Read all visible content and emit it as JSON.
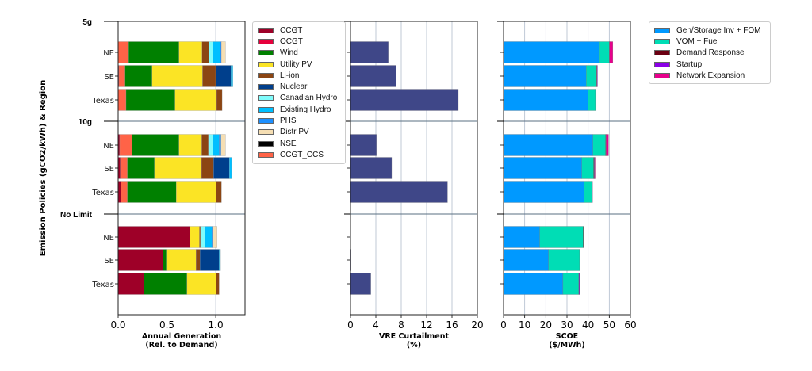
{
  "chart_data": [
    {
      "type": "bar",
      "orientation": "horizontal",
      "stacked": true,
      "xlabel": "Annual Generation\n(Rel. to Demand)",
      "ylabel": "Emission Policies (gCO2/kWh) & Region",
      "xlim": [
        0,
        1.3
      ],
      "xticks": [
        "0.0",
        "0.5",
        "1.0"
      ],
      "grid": "x",
      "legend_position": "right",
      "groups": [
        "5g",
        "10g",
        "No Limit"
      ],
      "regions": [
        "NE",
        "SE",
        "Texas"
      ],
      "legend": [
        "CCGT",
        "OCGT",
        "Wind",
        "Utility PV",
        "Li-ion",
        "Nuclear",
        "Canadian Hydro",
        "Existing Hydro",
        "PHS",
        "Distr PV",
        "NSE",
        "CCGT_CCS"
      ],
      "colors": {
        "CCGT": "#9e0028",
        "OCGT": "#e6003c",
        "Wind": "#008000",
        "Utility PV": "#fbe425",
        "Li-ion": "#8b4513",
        "Nuclear": "#003f8c",
        "Canadian Hydro": "#7ffcfc",
        "Existing Hydro": "#00bfff",
        "PHS": "#1e90ff",
        "Distr PV": "#f5deb3",
        "NSE": "#000000",
        "CCGT_CCS": "#ff6347"
      },
      "rows": [
        {
          "group": "5g",
          "region": "NE",
          "segments": {
            "CCGT_CCS": 0.108,
            "Wind": 0.515,
            "Utility PV": 0.237,
            "Li-ion": 0.07,
            "Canadian Hydro": 0.043,
            "Existing Hydro": 0.073,
            "PHS": 0.011,
            "Distr PV": 0.043
          }
        },
        {
          "group": "5g",
          "region": "SE",
          "segments": {
            "CCGT": 0.008,
            "CCGT_CCS": 0.062,
            "Wind": 0.278,
            "Utility PV": 0.517,
            "Li-ion": 0.135,
            "Nuclear": 0.156,
            "Existing Hydro": 0.019
          }
        },
        {
          "group": "5g",
          "region": "Texas",
          "segments": {
            "CCGT_CCS": 0.081,
            "Wind": 0.501,
            "Utility PV": 0.426,
            "Li-ion": 0.057
          }
        },
        {
          "group": "10g",
          "region": "NE",
          "segments": {
            "CCGT": 0.016,
            "CCGT_CCS": 0.127,
            "Wind": 0.48,
            "Utility PV": 0.234,
            "Li-ion": 0.068,
            "Canadian Hydro": 0.045,
            "Existing Hydro": 0.065,
            "PHS": 0.019,
            "Distr PV": 0.046
          }
        },
        {
          "group": "10g",
          "region": "SE",
          "segments": {
            "CCGT": 0.022,
            "CCGT_CCS": 0.072,
            "Wind": 0.278,
            "Utility PV": 0.482,
            "Li-ion": 0.124,
            "Nuclear": 0.162,
            "Existing Hydro": 0.022
          }
        },
        {
          "group": "10g",
          "region": "Texas",
          "segments": {
            "CCGT": 0.027,
            "CCGT_CCS": 0.067,
            "Wind": 0.502,
            "Utility PV": 0.409,
            "Li-ion": 0.054
          }
        },
        {
          "group": "No Limit",
          "region": "NE",
          "segments": {
            "CCGT": 0.736,
            "Utility PV": 0.097,
            "Li-ion": 0.011,
            "Canadian Hydro": 0.045,
            "Existing Hydro": 0.071,
            "PHS": 0.008,
            "Distr PV": 0.045
          }
        },
        {
          "group": "No Limit",
          "region": "SE",
          "segments": {
            "CCGT": 0.458,
            "Wind": 0.035,
            "Utility PV": 0.305,
            "Li-ion": 0.04,
            "Nuclear": 0.197,
            "Existing Hydro": 0.014
          }
        },
        {
          "group": "No Limit",
          "region": "Texas",
          "segments": {
            "CCGT": 0.264,
            "Wind": 0.442,
            "Utility PV": 0.297,
            "Li-ion": 0.032
          }
        }
      ]
    },
    {
      "type": "bar",
      "orientation": "horizontal",
      "xlabel": "VRE Curtailment\n(%)",
      "xlim": [
        0,
        20
      ],
      "xticks": [
        "0",
        "4",
        "8",
        "12",
        "16",
        "20"
      ],
      "grid": "x",
      "color": "#3f4788",
      "values": [
        5.96,
        7.2,
        17.0,
        4.1,
        6.5,
        15.3,
        0.0,
        0.1,
        3.2
      ]
    },
    {
      "type": "bar",
      "orientation": "horizontal",
      "stacked": true,
      "xlabel": "SCOE\n($/MWh)",
      "xlim": [
        0,
        60
      ],
      "xticks": [
        "0",
        "10",
        "20",
        "30",
        "40",
        "50",
        "60"
      ],
      "grid": "x",
      "legend_position": "right",
      "legend": [
        "Gen/Storage Inv + FOM",
        "VOM + Fuel",
        "Demand Response",
        "Startup",
        "Network Expansion"
      ],
      "colors": {
        "Gen/Storage Inv + FOM": "#0099ff",
        "VOM + Fuel": "#00ddb5",
        "Demand Response": "#6b0012",
        "Startup": "#8a00e6",
        "Network Expansion": "#e8008c"
      },
      "rows": [
        {
          "Gen/Storage Inv + FOM": 45.4,
          "VOM + Fuel": 4.6,
          "Demand Response": 0.1,
          "Startup": 0.1,
          "Network Expansion": 1.5
        },
        {
          "Gen/Storage Inv + FOM": 39.1,
          "VOM + Fuel": 4.9,
          "Demand Response": 0.2,
          "Startup": 0.2,
          "Network Expansion": 0
        },
        {
          "Gen/Storage Inv + FOM": 40.0,
          "VOM + Fuel": 3.5,
          "Demand Response": 0.1,
          "Startup": 0.2,
          "Network Expansion": 0
        },
        {
          "Gen/Storage Inv + FOM": 42.25,
          "VOM + Fuel": 6.0,
          "Demand Response": 0.2,
          "Startup": 0.1,
          "Network Expansion": 1.1
        },
        {
          "Gen/Storage Inv + FOM": 37.0,
          "VOM + Fuel": 5.6,
          "Demand Response": 0.3,
          "Startup": 0.2,
          "Network Expansion": 0.1
        },
        {
          "Gen/Storage Inv + FOM": 38.0,
          "VOM + Fuel": 3.75,
          "Demand Response": 0.1,
          "Startup": 0.1,
          "Network Expansion": 0
        },
        {
          "Gen/Storage Inv + FOM": 17.1,
          "VOM + Fuel": 20.6,
          "Demand Response": 0.1,
          "Startup": 0,
          "Network Expansion": 0
        },
        {
          "Gen/Storage Inv + FOM": 21.25,
          "VOM + Fuel": 14.75,
          "Demand Response": 0.3,
          "Startup": 0,
          "Network Expansion": 0
        },
        {
          "Gen/Storage Inv + FOM": 28.1,
          "VOM + Fuel": 7.5,
          "Demand Response": 0.1,
          "Startup": 0.3,
          "Network Expansion": 0
        }
      ]
    }
  ]
}
